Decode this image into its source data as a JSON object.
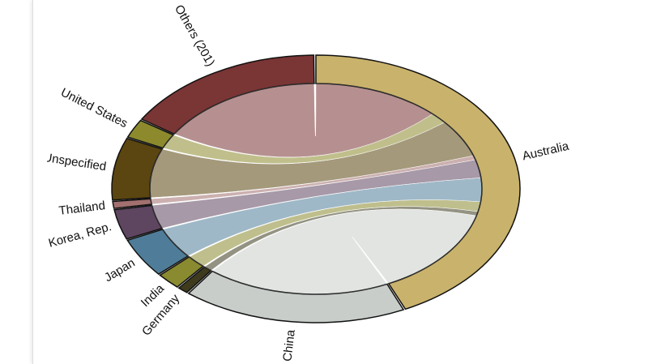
{
  "chart_data": {
    "type": "chord",
    "nodes": [
      {
        "name": "Australia",
        "color": "#c9b26b",
        "value": 154
      },
      {
        "name": "China",
        "color": "#c8cdc9",
        "value": 64
      },
      {
        "name": "Germany",
        "color": "#3d3a1e",
        "value": 3
      },
      {
        "name": "India",
        "color": "#8a8a30",
        "value": 7
      },
      {
        "name": "Japan",
        "color": "#4f7d99",
        "value": 17
      },
      {
        "name": "Korea, Rep.",
        "color": "#5e4560",
        "value": 13
      },
      {
        "name": "Thailand",
        "color": "#a37070",
        "value": 3
      },
      {
        "name": "Unspecified",
        "color": "#5b4510",
        "value": 27
      },
      {
        "name": "United States",
        "color": "#8d8a2e",
        "value": 8
      },
      {
        "name": "Others (201)",
        "color": "#7a3535",
        "value": 58
      }
    ]
  }
}
